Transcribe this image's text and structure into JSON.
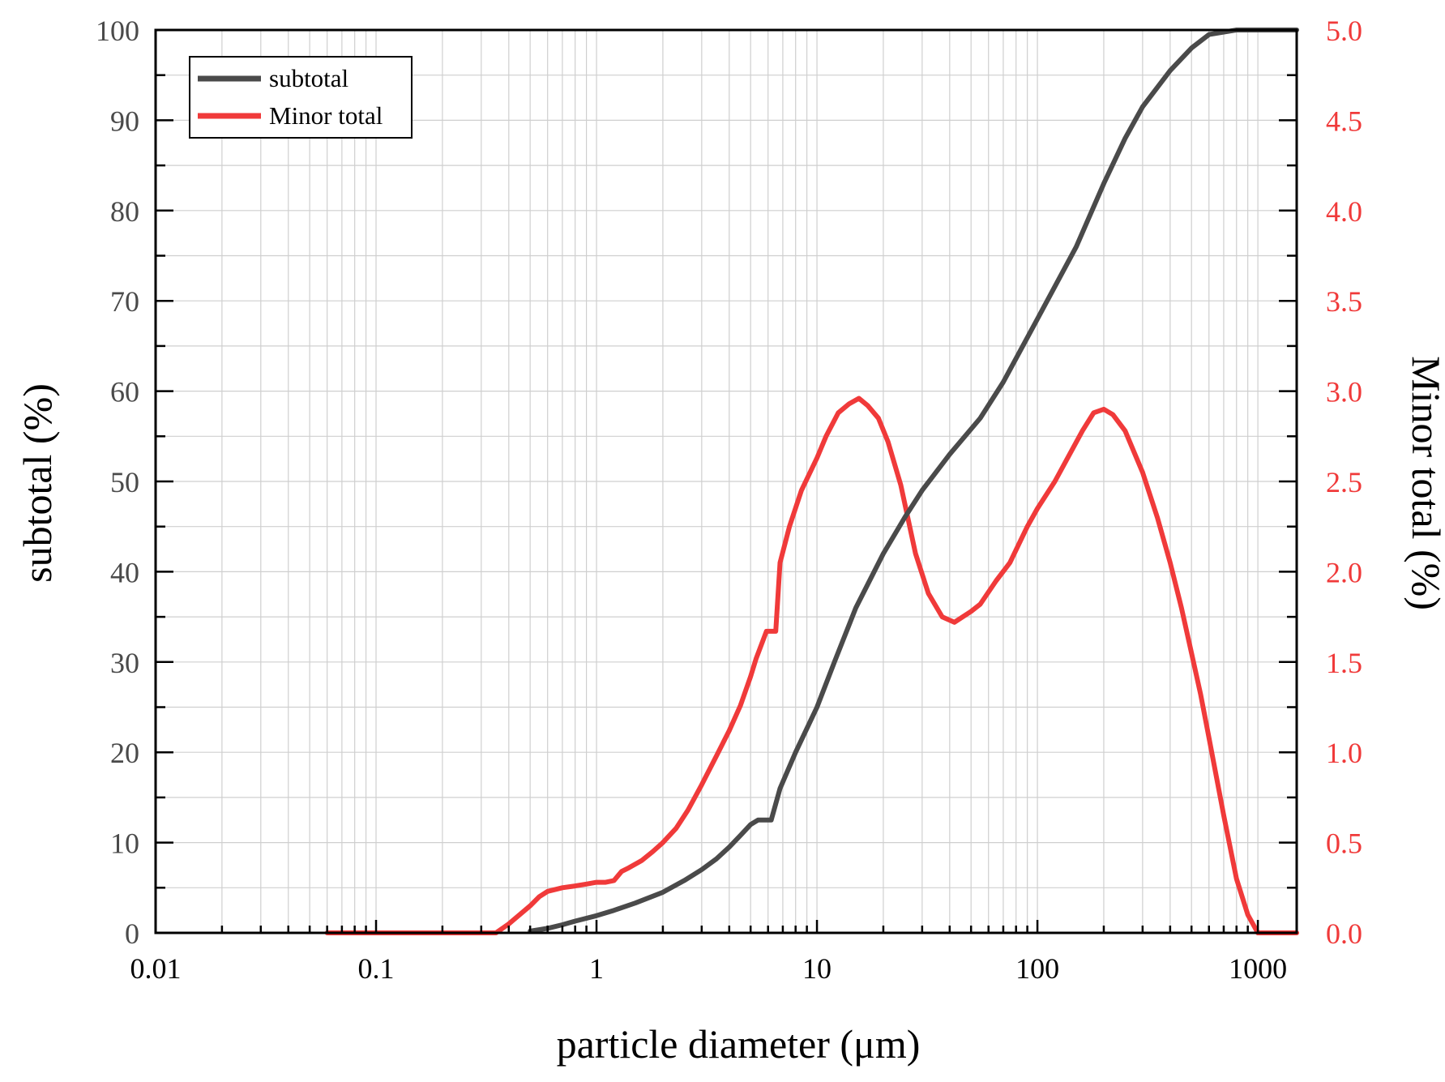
{
  "chart_data": {
    "type": "line",
    "title": "",
    "xlabel": "particle diameter (μm)",
    "ylabel": "subtotal (%)",
    "y2label": "Minor total (%)",
    "xscale": "log",
    "xlim": [
      0.01,
      1500
    ],
    "ylim": [
      0,
      100
    ],
    "y2lim": [
      0,
      5.0
    ],
    "grid": true,
    "legend_position": "top-left",
    "x_ticks": [
      {
        "value": 0.01,
        "label": "0.01"
      },
      {
        "value": 0.1,
        "label": "0.1"
      },
      {
        "value": 1,
        "label": "1"
      },
      {
        "value": 10,
        "label": "10"
      },
      {
        "value": 100,
        "label": "100"
      },
      {
        "value": 1000,
        "label": "1000"
      }
    ],
    "y_ticks": [
      {
        "value": 0,
        "label": "0"
      },
      {
        "value": 10,
        "label": "10"
      },
      {
        "value": 20,
        "label": "20"
      },
      {
        "value": 30,
        "label": "30"
      },
      {
        "value": 40,
        "label": "40"
      },
      {
        "value": 50,
        "label": "50"
      },
      {
        "value": 60,
        "label": "60"
      },
      {
        "value": 70,
        "label": "70"
      },
      {
        "value": 80,
        "label": "80"
      },
      {
        "value": 90,
        "label": "90"
      },
      {
        "value": 100,
        "label": "100"
      }
    ],
    "y2_ticks": [
      {
        "value": 0.0,
        "label": "0.0"
      },
      {
        "value": 0.5,
        "label": "0.5"
      },
      {
        "value": 1.0,
        "label": "1.0"
      },
      {
        "value": 1.5,
        "label": "1.5"
      },
      {
        "value": 2.0,
        "label": "2.0"
      },
      {
        "value": 2.5,
        "label": "2.5"
      },
      {
        "value": 3.0,
        "label": "3.0"
      },
      {
        "value": 3.5,
        "label": "3.5"
      },
      {
        "value": 4.0,
        "label": "4.0"
      },
      {
        "value": 4.5,
        "label": "4.5"
      },
      {
        "value": 5.0,
        "label": "5.0"
      }
    ],
    "series": [
      {
        "name": "subtotal",
        "axis": "left",
        "color": "#4a4a4a",
        "x": [
          0.5,
          0.6,
          0.7,
          0.8,
          1.0,
          1.2,
          1.5,
          2.0,
          2.5,
          3.0,
          3.5,
          4.0,
          4.5,
          5.0,
          5.4,
          6.2,
          6.8,
          8.0,
          10,
          12,
          15,
          20,
          25,
          30,
          40,
          55,
          70,
          100,
          150,
          200,
          250,
          300,
          400,
          500,
          600,
          800,
          1000,
          1500
        ],
        "y": [
          0.2,
          0.5,
          0.9,
          1.3,
          1.9,
          2.5,
          3.3,
          4.5,
          5.8,
          7.0,
          8.2,
          9.5,
          10.8,
          12.0,
          12.5,
          12.5,
          16.0,
          20.0,
          25.0,
          30.0,
          36.0,
          42.0,
          46.0,
          49.0,
          53.0,
          57.0,
          61.0,
          68.0,
          76.0,
          83.0,
          88.0,
          91.5,
          95.5,
          98.0,
          99.5,
          100,
          100,
          100
        ]
      },
      {
        "name": "Minor total",
        "axis": "right",
        "color": "#f03a3a",
        "x": [
          0.06,
          0.1,
          0.2,
          0.3,
          0.35,
          0.4,
          0.5,
          0.55,
          0.6,
          0.7,
          0.8,
          0.9,
          1.0,
          1.1,
          1.2,
          1.3,
          1.4,
          1.6,
          1.8,
          2.0,
          2.3,
          2.6,
          3.0,
          3.5,
          4.0,
          4.5,
          5.0,
          5.3,
          5.9,
          6.5,
          6.8,
          7.5,
          8.5,
          10,
          11,
          12.5,
          14,
          15.5,
          17,
          19,
          21,
          24,
          28,
          32,
          37,
          42,
          50,
          55,
          65,
          75,
          90,
          100,
          120,
          140,
          160,
          180,
          200,
          220,
          250,
          300,
          350,
          400,
          450,
          500,
          550,
          600,
          700,
          800,
          900,
          1000,
          1500
        ],
        "y": [
          0.0,
          0.0,
          0.0,
          0.0,
          0.0,
          0.05,
          0.15,
          0.2,
          0.23,
          0.25,
          0.26,
          0.27,
          0.28,
          0.28,
          0.29,
          0.34,
          0.36,
          0.4,
          0.45,
          0.5,
          0.58,
          0.68,
          0.82,
          0.98,
          1.12,
          1.26,
          1.42,
          1.52,
          1.67,
          1.67,
          2.05,
          2.25,
          2.45,
          2.63,
          2.75,
          2.88,
          2.93,
          2.96,
          2.92,
          2.85,
          2.72,
          2.48,
          2.1,
          1.88,
          1.75,
          1.72,
          1.78,
          1.82,
          1.95,
          2.05,
          2.25,
          2.35,
          2.5,
          2.65,
          2.78,
          2.88,
          2.9,
          2.87,
          2.78,
          2.55,
          2.3,
          2.05,
          1.8,
          1.55,
          1.32,
          1.08,
          0.65,
          0.3,
          0.1,
          0.0,
          0.0
        ]
      }
    ]
  }
}
